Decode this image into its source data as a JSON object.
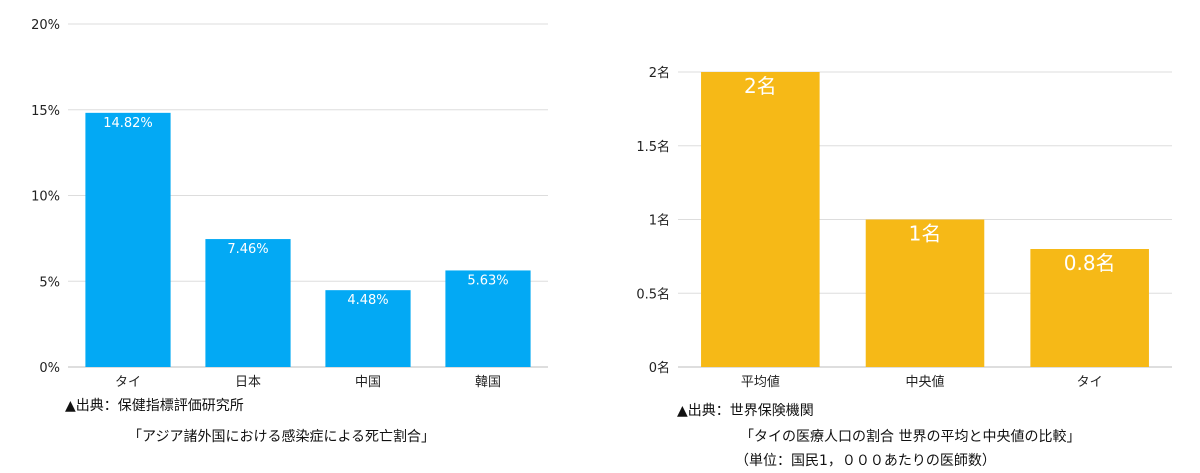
{
  "chart_data": [
    {
      "type": "bar",
      "categories": [
        "タイ",
        "日本",
        "中国",
        "韓国"
      ],
      "values": [
        14.82,
        7.46,
        4.48,
        5.63
      ],
      "data_labels": [
        "14.82%",
        "7.46%",
        "4.48%",
        "5.63%"
      ],
      "yticks": [
        "0%",
        "5%",
        "10%",
        "15%",
        "20%"
      ],
      "ylim": [
        0,
        20
      ],
      "grid": true,
      "color": "#03A9F4",
      "source": "▲出典：保健指標評価研究所",
      "caption": "「アジア諸外国における感染症による死亡割合」"
    },
    {
      "type": "bar",
      "categories": [
        "平均値",
        "中央値",
        "タイ"
      ],
      "values": [
        2,
        1,
        0.8
      ],
      "data_labels": [
        "2名",
        "1名",
        "0.8名"
      ],
      "yticks": [
        "0名",
        "0.5名",
        "1名",
        "1.5名",
        "2名"
      ],
      "ylim": [
        0,
        2
      ],
      "grid": true,
      "color": "#F6B917",
      "source": "▲出典：世界保険機関",
      "caption": "「タイの医療人口の割合 世界の平均と中央値の比較」",
      "caption2": "（単位：国民1，０００あたりの医師数）"
    }
  ]
}
